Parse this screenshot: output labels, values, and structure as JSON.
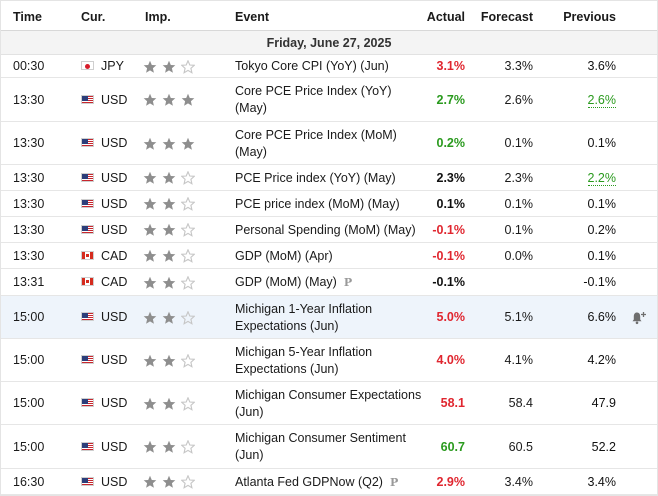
{
  "columns": {
    "time": "Time",
    "currency": "Cur.",
    "importance": "Imp.",
    "event": "Event",
    "actual": "Actual",
    "forecast": "Forecast",
    "previous": "Previous"
  },
  "date_label": "Friday, June 27, 2025",
  "colors": {
    "red": "#e0262f",
    "green": "#2a9a1e",
    "star_filled": "#8e8e8e",
    "star_empty": "#c6c6c6",
    "highlight_row": "#eef4fb"
  },
  "rows": [
    {
      "time": "00:30",
      "flag": "japan-flag-icon",
      "currency": "JPY",
      "importance": 2,
      "event": "Tokyo Core CPI (YoY) (Jun)",
      "actual": "3.1%",
      "actual_color": "red",
      "forecast": "3.3%",
      "previous": "3.6%",
      "previous_color": "black"
    },
    {
      "time": "13:30",
      "flag": "usa-flag-icon",
      "currency": "USD",
      "importance": 3,
      "event": "Core PCE Price Index (YoY) (May)",
      "actual": "2.7%",
      "actual_color": "green",
      "forecast": "2.6%",
      "previous": "2.6%",
      "previous_color": "green"
    },
    {
      "time": "13:30",
      "flag": "usa-flag-icon",
      "currency": "USD",
      "importance": 3,
      "event": "Core PCE Price Index (MoM) (May)",
      "actual": "0.2%",
      "actual_color": "green",
      "forecast": "0.1%",
      "previous": "0.1%",
      "previous_color": "black"
    },
    {
      "time": "13:30",
      "flag": "usa-flag-icon",
      "currency": "USD",
      "importance": 2,
      "event": "PCE Price index (YoY) (May)",
      "actual": "2.3%",
      "actual_color": "black",
      "forecast": "2.3%",
      "previous": "2.2%",
      "previous_color": "green"
    },
    {
      "time": "13:30",
      "flag": "usa-flag-icon",
      "currency": "USD",
      "importance": 2,
      "event": "PCE price index (MoM) (May)",
      "actual": "0.1%",
      "actual_color": "black",
      "forecast": "0.1%",
      "previous": "0.1%",
      "previous_color": "black"
    },
    {
      "time": "13:30",
      "flag": "usa-flag-icon",
      "currency": "USD",
      "importance": 2,
      "event": "Personal Spending (MoM) (May)",
      "actual": "-0.1%",
      "actual_color": "red",
      "forecast": "0.1%",
      "previous": "0.2%",
      "previous_color": "black"
    },
    {
      "time": "13:30",
      "flag": "canada-flag-icon",
      "currency": "CAD",
      "importance": 2,
      "event": "GDP (MoM) (Apr)",
      "actual": "-0.1%",
      "actual_color": "red",
      "forecast": "0.0%",
      "previous": "0.1%",
      "previous_color": "black"
    },
    {
      "time": "13:31",
      "flag": "canada-flag-icon",
      "currency": "CAD",
      "importance": 2,
      "event": "GDP (MoM) (May)",
      "preliminary": true,
      "actual": "-0.1%",
      "actual_color": "black",
      "forecast": "",
      "previous": "-0.1%",
      "previous_color": "black"
    },
    {
      "time": "15:00",
      "flag": "usa-flag-icon",
      "currency": "USD",
      "importance": 2,
      "event": "Michigan 1-Year Inflation Expectations (Jun)",
      "actual": "5.0%",
      "actual_color": "red",
      "forecast": "5.1%",
      "previous": "6.6%",
      "previous_color": "black",
      "highlighted": true,
      "alert_icon": "bell-plus-icon"
    },
    {
      "time": "15:00",
      "flag": "usa-flag-icon",
      "currency": "USD",
      "importance": 2,
      "event": "Michigan 5-Year Inflation Expectations (Jun)",
      "actual": "4.0%",
      "actual_color": "red",
      "forecast": "4.1%",
      "previous": "4.2%",
      "previous_color": "black"
    },
    {
      "time": "15:00",
      "flag": "usa-flag-icon",
      "currency": "USD",
      "importance": 2,
      "event": "Michigan Consumer Expectations (Jun)",
      "actual": "58.1",
      "actual_color": "red",
      "forecast": "58.4",
      "previous": "47.9",
      "previous_color": "black"
    },
    {
      "time": "15:00",
      "flag": "usa-flag-icon",
      "currency": "USD",
      "importance": 2,
      "event": "Michigan Consumer Sentiment (Jun)",
      "actual": "60.7",
      "actual_color": "green",
      "forecast": "60.5",
      "previous": "52.2",
      "previous_color": "black"
    },
    {
      "time": "16:30",
      "flag": "usa-flag-icon",
      "currency": "USD",
      "importance": 2,
      "event": "Atlanta Fed GDPNow (Q2)",
      "preliminary": true,
      "actual": "2.9%",
      "actual_color": "red",
      "forecast": "3.4%",
      "previous": "3.4%",
      "previous_color": "black"
    }
  ]
}
